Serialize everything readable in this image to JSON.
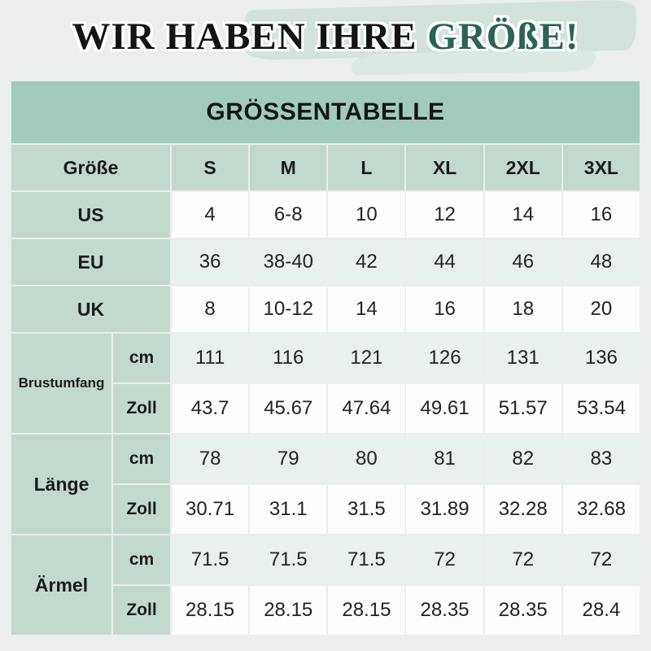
{
  "headline": {
    "prefix": "WIR HABEN IHRE",
    "highlight": "GRÖßE!"
  },
  "table": {
    "title": "GRÖSSENTABELLE",
    "header": {
      "label": "Größe",
      "sizes": [
        "S",
        "M",
        "L",
        "XL",
        "2XL",
        "3XL"
      ]
    },
    "conversion_rows": [
      {
        "label": "US",
        "values": [
          "4",
          "6-8",
          "10",
          "12",
          "14",
          "16"
        ],
        "tint": false
      },
      {
        "label": "EU",
        "values": [
          "36",
          "38-40",
          "42",
          "44",
          "46",
          "48"
        ],
        "tint": true
      },
      {
        "label": "UK",
        "values": [
          "8",
          "10-12",
          "14",
          "16",
          "18",
          "20"
        ],
        "tint": false
      }
    ],
    "measure_groups": [
      {
        "label": "Brustumfang",
        "rows": [
          {
            "unit": "cm",
            "values": [
              "111",
              "116",
              "121",
              "126",
              "131",
              "136"
            ],
            "tint": true
          },
          {
            "unit": "Zoll",
            "values": [
              "43.7",
              "45.67",
              "47.64",
              "49.61",
              "51.57",
              "53.54"
            ],
            "tint": false
          }
        ]
      },
      {
        "label": "Länge",
        "rows": [
          {
            "unit": "cm",
            "values": [
              "78",
              "79",
              "80",
              "81",
              "82",
              "83"
            ],
            "tint": true
          },
          {
            "unit": "Zoll",
            "values": [
              "30.71",
              "31.1",
              "31.5",
              "31.89",
              "32.28",
              "32.68"
            ],
            "tint": false
          }
        ]
      },
      {
        "label": "Ärmel",
        "rows": [
          {
            "unit": "cm",
            "values": [
              "71.5",
              "71.5",
              "71.5",
              "72",
              "72",
              "72"
            ],
            "tint": true
          },
          {
            "unit": "Zoll",
            "values": [
              "28.15",
              "28.15",
              "28.15",
              "28.35",
              "28.35",
              "28.4"
            ],
            "tint": false
          }
        ]
      }
    ]
  },
  "colors": {
    "page_background": "#ebeeec",
    "headline_dark": "#141414",
    "headline_green": "#2a6355",
    "brush_stroke": "#d3e2db",
    "title_band": "#a0cbbe",
    "label_cell": "#c4d9ce",
    "tint_row": "#e8f1ec",
    "white_row": "#fdfdfd"
  },
  "chart_data": {
    "type": "table",
    "title": "GRÖSSENTABELLE",
    "columns": [
      "Größe",
      "S",
      "M",
      "L",
      "XL",
      "2XL",
      "3XL"
    ],
    "rows": [
      [
        "US",
        "4",
        "6-8",
        "10",
        "12",
        "14",
        "16"
      ],
      [
        "EU",
        "36",
        "38-40",
        "42",
        "44",
        "46",
        "48"
      ],
      [
        "UK",
        "8",
        "10-12",
        "14",
        "16",
        "18",
        "20"
      ],
      [
        "Brustumfang cm",
        "111",
        "116",
        "121",
        "126",
        "131",
        "136"
      ],
      [
        "Brustumfang Zoll",
        "43.7",
        "45.67",
        "47.64",
        "49.61",
        "51.57",
        "53.54"
      ],
      [
        "Länge cm",
        "78",
        "79",
        "80",
        "81",
        "82",
        "83"
      ],
      [
        "Länge Zoll",
        "30.71",
        "31.1",
        "31.5",
        "31.89",
        "32.28",
        "32.68"
      ],
      [
        "Ärmel cm",
        "71.5",
        "71.5",
        "71.5",
        "72",
        "72",
        "72"
      ],
      [
        "Ärmel Zoll",
        "28.15",
        "28.15",
        "28.15",
        "28.35",
        "28.35",
        "28.4"
      ]
    ]
  }
}
